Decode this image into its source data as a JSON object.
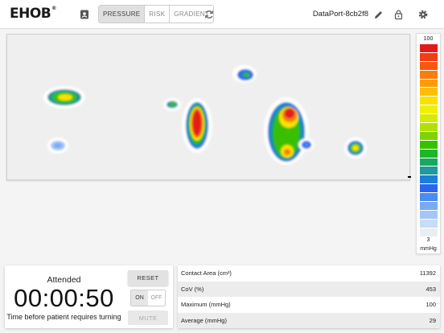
{
  "header": {
    "logo_text": "EHOB",
    "logo_mark": "®",
    "tabs": [
      {
        "label": "PRESSURE",
        "active": true
      },
      {
        "label": "RISK",
        "active": false
      },
      {
        "label": "GRADIENT",
        "active": false
      }
    ],
    "device_name": "DataPort-8cb2f8",
    "icons": {
      "patient": "patient-card-icon",
      "refresh": "refresh-icon",
      "edit": "pencil-icon",
      "lock": "lock-icon",
      "settings": "gear-icon"
    }
  },
  "legend": {
    "max_label": "100",
    "min_label": "3",
    "unit": "mmHg",
    "colors": [
      "#e41a1a",
      "#f23c12",
      "#f7580f",
      "#f97d0c",
      "#fb9c07",
      "#fdbe02",
      "#fde000",
      "#f1ef03",
      "#d5ea06",
      "#b2e006",
      "#7fd203",
      "#38c000",
      "#1eb52a",
      "#17a861",
      "#1e9a9c",
      "#1a7fd8",
      "#2a66ee",
      "#4b8cf3",
      "#78aaf4",
      "#a3c6f6",
      "#c9dcf6",
      "#e9eef5"
    ]
  },
  "timer": {
    "status": "Attended",
    "time": "00:00:50",
    "caption": "Time before patient requires turning",
    "reset_label": "RESET",
    "on_label": "ON",
    "off_label": "OFF",
    "alarm_on": true,
    "mute_label": "MUTE"
  },
  "stats": [
    {
      "label": "Contact Area (cm²)",
      "value": "11392"
    },
    {
      "label": "CoV (%)",
      "value": "453"
    },
    {
      "label": "Maximum (mmHg)",
      "value": "100"
    },
    {
      "label": "Average (mmHg)",
      "value": "29"
    }
  ]
}
